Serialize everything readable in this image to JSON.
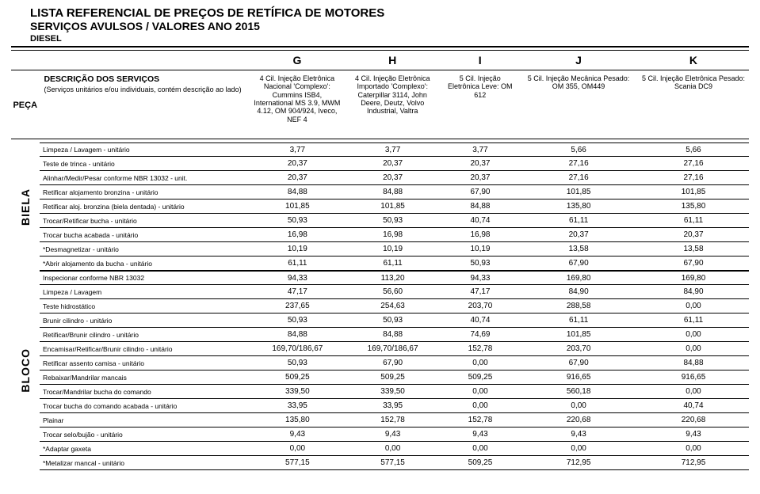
{
  "titles": {
    "t1": "LISTA REFERENCIAL DE PREÇOS DE RETÍFICA DE MOTORES",
    "t2": "SERVIÇOS AVULSOS / VALORES ANO 2015",
    "sub": "DIESEL"
  },
  "headers": {
    "peca": "PEÇA",
    "desc_title": "DESCRIÇÃO DOS SERVIÇOS",
    "desc_sub": "(Serviços unitários e/ou individuais, contém descrição ao lado)",
    "letters": {
      "g": "G",
      "h": "H",
      "i": "I",
      "j": "J",
      "k": "K"
    },
    "g": "4 Cil. Injeção Eletrônica Nacional 'Complexo': Cummins ISB4, International MS 3.9, MWM 4.12, OM 904/924, Iveco, NEF 4",
    "h": "4 Cil. Injeção Eletrônica Importado 'Complexo': Caterpillar 3114, John Deere, Deutz, Volvo Industrial, Valtra",
    "i": "5 Cil. Injeção Eletrônica Leve: OM 612",
    "j": "5 Cil. Injeção Mecânica Pesado: OM 355, OM449",
    "k": "5 Cil. Injeção Eletrônica Pesado: Scania DC9"
  },
  "groups": {
    "biela": "BIELA",
    "bloco": "BLOCO"
  },
  "biela_rows": [
    {
      "d": "Limpeza / Lavagem - unitário",
      "g": "3,77",
      "h": "3,77",
      "i": "3,77",
      "j": "5,66",
      "k": "5,66"
    },
    {
      "d": "Teste de trinca - unitário",
      "g": "20,37",
      "h": "20,37",
      "i": "20,37",
      "j": "27,16",
      "k": "27,16"
    },
    {
      "d": "Alinhar/Medir/Pesar conforme NBR 13032 - unit.",
      "g": "20,37",
      "h": "20,37",
      "i": "20,37",
      "j": "27,16",
      "k": "27,16"
    },
    {
      "d": "Retificar alojamento bronzina - unitário",
      "g": "84,88",
      "h": "84,88",
      "i": "67,90",
      "j": "101,85",
      "k": "101,85"
    },
    {
      "d": "Retificar aloj. bronzina (biela dentada) - unitário",
      "g": "101,85",
      "h": "101,85",
      "i": "84,88",
      "j": "135,80",
      "k": "135,80"
    },
    {
      "d": "Trocar/Retificar bucha - unitário",
      "g": "50,93",
      "h": "50,93",
      "i": "40,74",
      "j": "61,11",
      "k": "61,11"
    },
    {
      "d": "Trocar bucha acabada - unitário",
      "g": "16,98",
      "h": "16,98",
      "i": "16,98",
      "j": "20,37",
      "k": "20,37"
    },
    {
      "d": "*Desmagnetizar - unitário",
      "g": "10,19",
      "h": "10,19",
      "i": "10,19",
      "j": "13,58",
      "k": "13,58"
    },
    {
      "d": "*Abrir alojamento da bucha - unitário",
      "g": "61,11",
      "h": "61,11",
      "i": "50,93",
      "j": "67,90",
      "k": "67,90"
    }
  ],
  "bloco_rows": [
    {
      "d": "Inspecionar conforme NBR 13032",
      "g": "94,33",
      "h": "113,20",
      "i": "94,33",
      "j": "169,80",
      "k": "169,80"
    },
    {
      "d": "Limpeza / Lavagem",
      "g": "47,17",
      "h": "56,60",
      "i": "47,17",
      "j": "84,90",
      "k": "84,90"
    },
    {
      "d": "Teste hidrostático",
      "g": "237,65",
      "h": "254,63",
      "i": "203,70",
      "j": "288,58",
      "k": "0,00"
    },
    {
      "d": "Brunir cilindro - unitário",
      "g": "50,93",
      "h": "50,93",
      "i": "40,74",
      "j": "61,11",
      "k": "61,11"
    },
    {
      "d": "Retificar/Brunir cilindro - unitário",
      "g": "84,88",
      "h": "84,88",
      "i": "74,69",
      "j": "101,85",
      "k": "0,00"
    },
    {
      "d": "Encamisar/Retificar/Brunir cilindro - unitário",
      "g": "169,70/186,67",
      "h": "169,70/186,67",
      "i": "152,78",
      "j": "203,70",
      "k": "0,00"
    },
    {
      "d": "Retificar assento camisa - unitário",
      "g": "50,93",
      "h": "67,90",
      "i": "0,00",
      "j": "67,90",
      "k": "84,88"
    },
    {
      "d": "Rebaixar/Mandrilar mancais",
      "g": "509,25",
      "h": "509,25",
      "i": "509,25",
      "j": "916,65",
      "k": "916,65"
    },
    {
      "d": "Trocar/Mandrilar bucha do comando",
      "g": "339,50",
      "h": "339,50",
      "i": "0,00",
      "j": "560,18",
      "k": "0,00"
    },
    {
      "d": "Trocar bucha do comando acabada - unitário",
      "g": "33,95",
      "h": "33,95",
      "i": "0,00",
      "j": "0,00",
      "k": "40,74"
    },
    {
      "d": "Plainar",
      "g": "135,80",
      "h": "152,78",
      "i": "152,78",
      "j": "220,68",
      "k": "220,68"
    },
    {
      "d": "Trocar selo/bujão - unitário",
      "g": "9,43",
      "h": "9,43",
      "i": "9,43",
      "j": "9,43",
      "k": "9,43"
    },
    {
      "d": "*Adaptar gaxeta",
      "g": "0,00",
      "h": "0,00",
      "i": "0,00",
      "j": "0,00",
      "k": "0,00"
    },
    {
      "d": "*Metalizar mancal - unitário",
      "g": "577,15",
      "h": "577,15",
      "i": "509,25",
      "j": "712,95",
      "k": "712,95"
    }
  ],
  "style": {
    "font": "Arial",
    "border_color": "#000000",
    "bg": "#ffffff",
    "letter_fontsize": 14,
    "hdr_fontsize": 9,
    "row_fontsize": 10,
    "desc_fontsize": 8.5,
    "col_widths": {
      "peca": 36,
      "desc": 270,
      "g": 120,
      "h": 124,
      "i": 100,
      "j": 152,
      "k": 142
    }
  }
}
